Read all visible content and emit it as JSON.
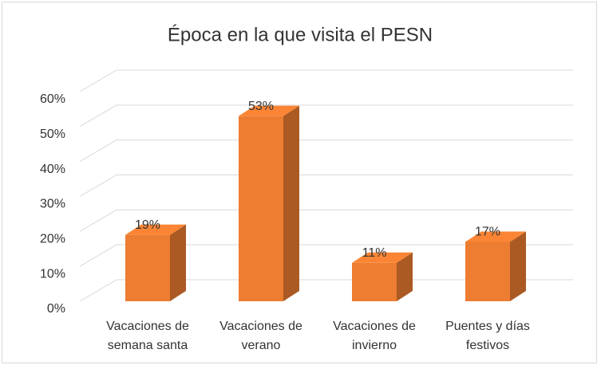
{
  "chart_data": {
    "type": "bar3d",
    "title": "Época en la que visita el PESN",
    "categories": [
      "Vacaciones de semana santa",
      "Vacaciones de verano",
      "Vacaciones de invierno",
      "Puentes y días festivos"
    ],
    "values": [
      19,
      53,
      11,
      17
    ],
    "value_labels": [
      "19%",
      "53%",
      "11%",
      "17%"
    ],
    "color": "#ed7d31",
    "ylim": [
      0,
      60
    ],
    "yticks": [
      {
        "value": 0,
        "label": "0%"
      },
      {
        "value": 10,
        "label": "10%"
      },
      {
        "value": 20,
        "label": "20%"
      },
      {
        "value": 30,
        "label": "30%"
      },
      {
        "value": 40,
        "label": "40%"
      },
      {
        "value": 50,
        "label": "50%"
      },
      {
        "value": 60,
        "label": "60%"
      }
    ],
    "grid": true
  }
}
